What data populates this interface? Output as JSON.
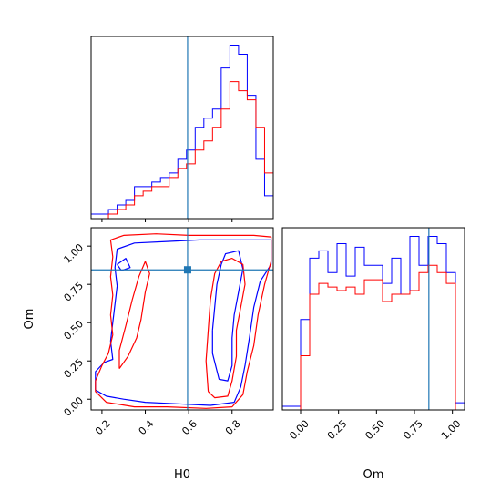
{
  "chart_data": {
    "type": "corner",
    "colors": {
      "series_a": "#0000ff",
      "series_b": "#ff0000",
      "truth": "#1f77b4"
    },
    "parameters": [
      "H0",
      "Om"
    ],
    "truths": {
      "H0": 0.595,
      "Om": 0.845
    },
    "panels": [
      {
        "panel": "H0-marginal",
        "type": "histogram",
        "xlim": [
          0.15,
          0.99
        ],
        "bin_edges": [
          0.15,
          0.19,
          0.23,
          0.27,
          0.31,
          0.35,
          0.39,
          0.43,
          0.47,
          0.51,
          0.55,
          0.59,
          0.63,
          0.67,
          0.71,
          0.75,
          0.79,
          0.83,
          0.87,
          0.91,
          0.95,
          0.99
        ],
        "series": [
          {
            "key": "series_a",
            "values": [
              1,
              1,
              2,
              3,
              4,
              7,
              7,
              8,
              9,
              10,
              13,
              15,
              20,
              22,
              24,
              33,
              38,
              36,
              27,
              13,
              5
            ]
          },
          {
            "key": "series_b",
            "values": [
              0,
              0,
              1,
              2,
              3,
              5,
              6,
              7,
              7,
              9,
              11,
              12,
              15,
              17,
              20,
              24,
              30,
              28,
              26,
              20,
              10
            ]
          }
        ]
      },
      {
        "panel": "Om-marginal",
        "type": "histogram",
        "xlim": [
          -0.12,
          1.08
        ],
        "xticks": [
          "0.00",
          "0.25",
          "0.50",
          "0.75",
          "1.00"
        ],
        "xlabel": "Om",
        "bin_edges": [
          -0.12,
          -0.06,
          0.0,
          0.06,
          0.12,
          0.18,
          0.24,
          0.3,
          0.36,
          0.42,
          0.48,
          0.54,
          0.6,
          0.66,
          0.72,
          0.78,
          0.84,
          0.9,
          0.96,
          1.02,
          1.08
        ],
        "series": [
          {
            "key": "series_a",
            "values": [
              1,
              1,
              25,
              42,
              44,
              38,
              46,
              37,
              45,
              40,
              40,
              35,
              42,
              32,
              48,
              40,
              48,
              46,
              38,
              2
            ]
          },
          {
            "key": "series_b",
            "values": [
              0,
              0,
              15,
              32,
              35,
              34,
              33,
              34,
              32,
              36,
              36,
              30,
              32,
              32,
              33,
              38,
              40,
              38,
              35,
              0
            ]
          }
        ]
      },
      {
        "panel": "H0-Om-joint",
        "type": "contour",
        "xlim": [
          0.15,
          0.99
        ],
        "ylim": [
          -0.07,
          1.12
        ],
        "xticks": [
          "0.2",
          "0.4",
          "0.6",
          "0.8"
        ],
        "yticks": [
          "0.00",
          "0.25",
          "0.50",
          "0.75",
          "1.00"
        ],
        "xlabel": "H0",
        "ylabel": "Om",
        "contours": [
          {
            "key": "series_a",
            "points": [
              [
                0.17,
                0.06
              ],
              [
                0.17,
                0.18
              ],
              [
                0.21,
                0.24
              ],
              [
                0.25,
                0.26
              ],
              [
                0.24,
                0.38
              ],
              [
                0.25,
                0.5
              ],
              [
                0.26,
                0.62
              ],
              [
                0.27,
                0.74
              ],
              [
                0.26,
                0.86
              ],
              [
                0.27,
                0.98
              ],
              [
                0.35,
                1.02
              ],
              [
                0.5,
                1.03
              ],
              [
                0.65,
                1.04
              ],
              [
                0.8,
                1.04
              ],
              [
                0.98,
                1.04
              ],
              [
                0.98,
                0.88
              ],
              [
                0.93,
                0.77
              ],
              [
                0.9,
                0.6
              ],
              [
                0.88,
                0.4
              ],
              [
                0.86,
                0.22
              ],
              [
                0.84,
                0.08
              ],
              [
                0.81,
                -0.02
              ],
              [
                0.7,
                -0.04
              ],
              [
                0.55,
                -0.03
              ],
              [
                0.4,
                -0.02
              ],
              [
                0.3,
                0.0
              ],
              [
                0.22,
                0.02
              ],
              [
                0.17,
                0.06
              ]
            ]
          },
          {
            "key": "series_a",
            "points": [
              [
                0.27,
                0.88
              ],
              [
                0.31,
                0.92
              ],
              [
                0.33,
                0.86
              ],
              [
                0.29,
                0.84
              ],
              [
                0.27,
                0.88
              ]
            ]
          },
          {
            "key": "series_a",
            "points": [
              [
                0.71,
                0.45
              ],
              [
                0.72,
                0.6
              ],
              [
                0.73,
                0.75
              ],
              [
                0.75,
                0.88
              ],
              [
                0.77,
                0.95
              ],
              [
                0.83,
                0.97
              ],
              [
                0.85,
                0.85
              ],
              [
                0.83,
                0.7
              ],
              [
                0.81,
                0.55
              ],
              [
                0.8,
                0.4
              ],
              [
                0.8,
                0.22
              ],
              [
                0.78,
                0.12
              ],
              [
                0.74,
                0.13
              ],
              [
                0.71,
                0.3
              ],
              [
                0.71,
                0.45
              ]
            ]
          },
          {
            "key": "series_b",
            "points": [
              [
                0.17,
                0.12
              ],
              [
                0.2,
                0.22
              ],
              [
                0.23,
                0.3
              ],
              [
                0.25,
                0.42
              ],
              [
                0.24,
                0.55
              ],
              [
                0.25,
                0.68
              ],
              [
                0.24,
                0.8
              ],
              [
                0.25,
                0.93
              ],
              [
                0.24,
                1.04
              ],
              [
                0.3,
                1.07
              ],
              [
                0.45,
                1.08
              ],
              [
                0.6,
                1.07
              ],
              [
                0.75,
                1.07
              ],
              [
                0.9,
                1.07
              ],
              [
                0.98,
                1.06
              ],
              [
                0.98,
                0.9
              ],
              [
                0.95,
                0.75
              ],
              [
                0.92,
                0.55
              ],
              [
                0.9,
                0.35
              ],
              [
                0.87,
                0.18
              ],
              [
                0.85,
                0.03
              ],
              [
                0.8,
                -0.05
              ],
              [
                0.68,
                -0.06
              ],
              [
                0.5,
                -0.05
              ],
              [
                0.35,
                -0.05
              ],
              [
                0.22,
                -0.02
              ],
              [
                0.17,
                0.05
              ],
              [
                0.17,
                0.12
              ]
            ]
          },
          {
            "key": "series_b",
            "points": [
              [
                0.28,
                0.2
              ],
              [
                0.32,
                0.28
              ],
              [
                0.36,
                0.4
              ],
              [
                0.38,
                0.52
              ],
              [
                0.4,
                0.7
              ],
              [
                0.42,
                0.82
              ],
              [
                0.4,
                0.9
              ],
              [
                0.37,
                0.8
              ],
              [
                0.34,
                0.65
              ],
              [
                0.31,
                0.48
              ],
              [
                0.28,
                0.32
              ],
              [
                0.28,
                0.2
              ]
            ]
          },
          {
            "key": "series_b",
            "points": [
              [
                0.69,
                0.05
              ],
              [
                0.68,
                0.25
              ],
              [
                0.69,
                0.45
              ],
              [
                0.7,
                0.65
              ],
              [
                0.72,
                0.82
              ],
              [
                0.75,
                0.9
              ],
              [
                0.8,
                0.92
              ],
              [
                0.85,
                0.88
              ],
              [
                0.86,
                0.75
              ],
              [
                0.84,
                0.6
              ],
              [
                0.82,
                0.45
              ],
              [
                0.82,
                0.28
              ],
              [
                0.8,
                0.12
              ],
              [
                0.78,
                0.02
              ],
              [
                0.72,
                0.01
              ],
              [
                0.69,
                0.05
              ]
            ]
          }
        ]
      }
    ]
  }
}
